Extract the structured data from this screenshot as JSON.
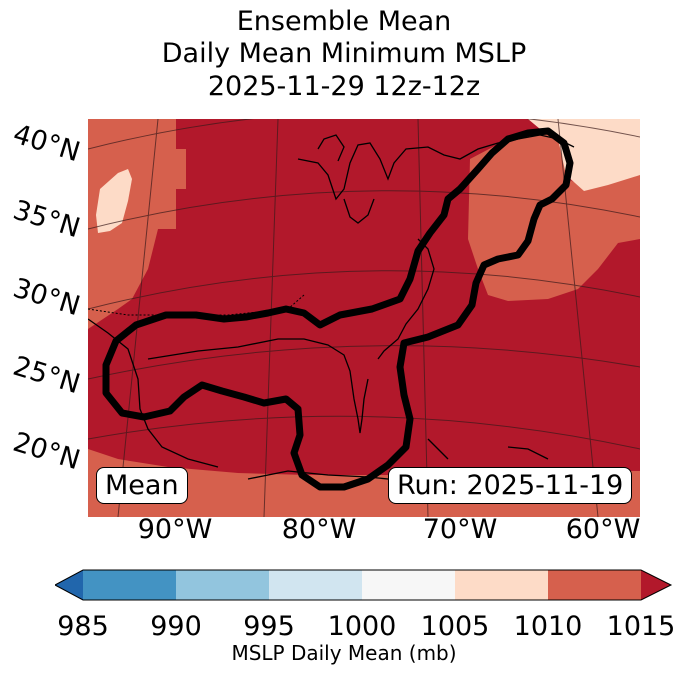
{
  "title": {
    "line1": "Ensemble Mean",
    "line2": "Daily Mean Minimum MSLP",
    "line3": "2025-11-29 12z-12z"
  },
  "map": {
    "lat_labels": [
      "40°N",
      "35°N",
      "30°N",
      "25°N",
      "20°N"
    ],
    "lon_labels": [
      "90°W",
      "80°W",
      "70°W",
      "60°W"
    ],
    "fill_colors": {
      "1005-1010": "#fddbc7",
      "1010-1015": "#d6604d",
      "1015+": "#b2182b",
      "contour": "#000000"
    },
    "overlay_left": "Mean",
    "overlay_right": "Run: 2025-11-19"
  },
  "colorbar": {
    "ticks": [
      "985",
      "990",
      "995",
      "1000",
      "1005",
      "1010",
      "1015"
    ],
    "colors": [
      "#2166ac",
      "#4393c3",
      "#92c5de",
      "#d1e5f0",
      "#f7f7f7",
      "#fddbc7",
      "#d6604d",
      "#b2182b"
    ],
    "label": "MSLP Daily Mean (mb)"
  }
}
